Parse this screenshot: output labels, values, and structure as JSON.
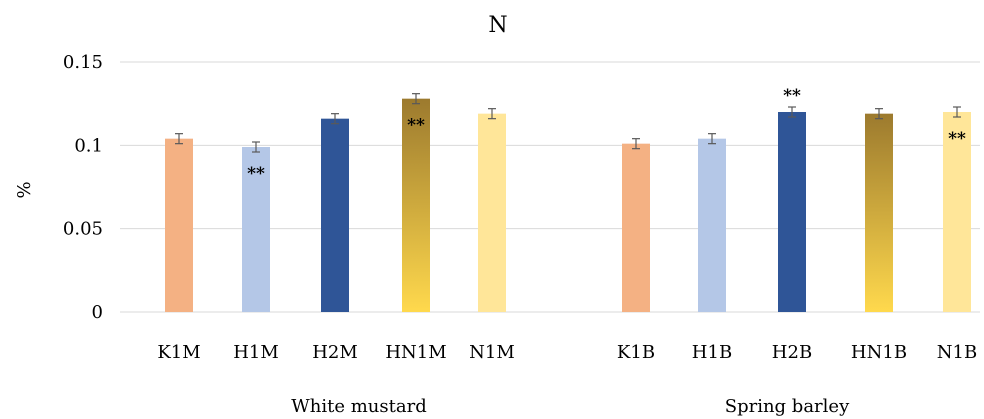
{
  "chart_data": {
    "type": "bar",
    "title": "N",
    "ylabel": "%",
    "ylim": [
      0,
      0.15
    ],
    "yticks": [
      "0",
      "0.05",
      "0.1",
      "0.15"
    ],
    "grid": true,
    "groups": [
      {
        "name": "White mustard",
        "bars": [
          {
            "label": "K1M",
            "value": 0.104,
            "error": 0.003,
            "color": "#f4b183",
            "gradient": false,
            "sig": ""
          },
          {
            "label": "H1M",
            "value": 0.099,
            "error": 0.003,
            "color": "#b4c7e7",
            "gradient": false,
            "sig": "**"
          },
          {
            "label": "H2M",
            "value": 0.116,
            "error": 0.003,
            "color": "#2f5597",
            "gradient": false,
            "sig": ""
          },
          {
            "label": "HN1M",
            "value": 0.128,
            "error": 0.003,
            "color": "#bf9000",
            "gradient": true,
            "sig": "**"
          },
          {
            "label": "N1M",
            "value": 0.119,
            "error": 0.003,
            "color": "#ffe699",
            "gradient": false,
            "sig": ""
          }
        ]
      },
      {
        "name": "Spring barley",
        "bars": [
          {
            "label": "K1B",
            "value": 0.101,
            "error": 0.003,
            "color": "#f4b183",
            "gradient": false,
            "sig": ""
          },
          {
            "label": "H1B",
            "value": 0.104,
            "error": 0.003,
            "color": "#b4c7e7",
            "gradient": false,
            "sig": ""
          },
          {
            "label": "H2B",
            "value": 0.12,
            "error": 0.003,
            "color": "#2f5597",
            "gradient": false,
            "sig": "**"
          },
          {
            "label": "HN1B",
            "value": 0.119,
            "error": 0.003,
            "color": "#bf9000",
            "gradient": true,
            "sig": ""
          },
          {
            "label": "N1B",
            "value": 0.12,
            "error": 0.003,
            "color": "#ffe699",
            "gradient": false,
            "sig": "**"
          }
        ]
      }
    ],
    "colors": {
      "gradient_top": "#9c7a2e",
      "gradient_bottom": "#ffd94d",
      "grid": "#d9d9d9",
      "error_bar": "#595959"
    }
  }
}
